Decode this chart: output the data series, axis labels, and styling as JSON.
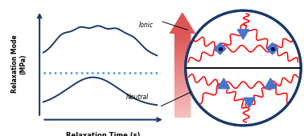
{
  "bg_color": "#ffffff",
  "axis_color": "#1a3a6b",
  "curve_color": "#1a3a6b",
  "dotted_line_color": "#4499dd",
  "ylabel": "Relaxation Mode\n(MPa)",
  "xlabel": "Relaxation Time (s)",
  "ionic_label": "Ionic",
  "neutral_label": "Neutral",
  "circle_edge_color": "#1a3a6b",
  "red_chain_color": "#cc1100",
  "blue_junction_color": "#4477cc",
  "ionic_dot_color": "#111144",
  "arrow_top_color": "#dd5555",
  "arrow_bottom_color": "#f5c0c0",
  "annotation_color": "#111111",
  "divider_color": "#111111"
}
